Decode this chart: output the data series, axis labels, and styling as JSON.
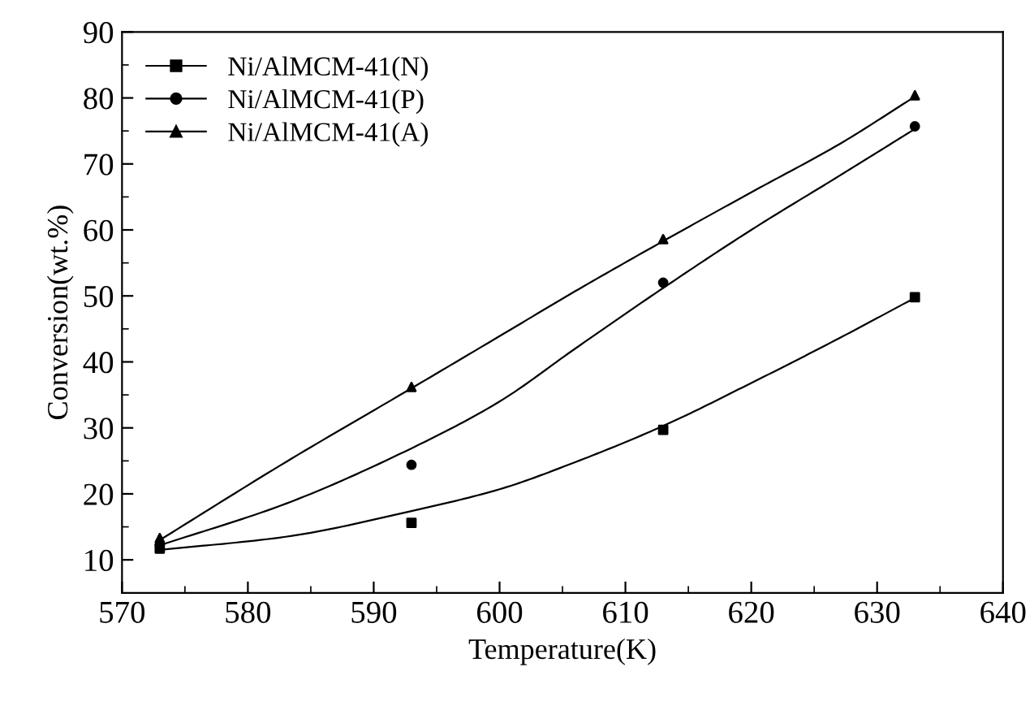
{
  "chart_data": {
    "type": "scatter",
    "xlabel": "Temperature(K)",
    "ylabel": "Conversion(wt.%)",
    "xlim": [
      570,
      640
    ],
    "xticks": [
      570,
      580,
      590,
      600,
      610,
      620,
      630,
      640
    ],
    "ylim": [
      5,
      90
    ],
    "yticks": [
      10,
      20,
      30,
      40,
      50,
      60,
      70,
      80,
      90
    ],
    "grid": false,
    "legend": "top left",
    "series": [
      {
        "name": "Ni/AlMCM-41(N)",
        "marker": "square",
        "color": "#000000",
        "x": [
          573,
          593,
          613,
          633
        ],
        "values": [
          11.7,
          15.6,
          29.7,
          49.8
        ]
      },
      {
        "name": "Ni/AlMCM-41(P)",
        "marker": "circle",
        "color": "#000000",
        "x": [
          573,
          593,
          613,
          633
        ],
        "values": [
          12.3,
          24.4,
          52.0,
          75.7
        ]
      },
      {
        "name": "Ni/AlMCM-41(A)",
        "marker": "triangle",
        "color": "#000000",
        "x": [
          573,
          593,
          613,
          633
        ],
        "values": [
          13.3,
          36.2,
          58.6,
          80.4
        ]
      },
      {
        "type": "line",
        "color": "#000000",
        "x": [
          573,
          583,
          593,
          600,
          606,
          613,
          620,
          627,
          633
        ],
        "values": [
          11.5,
          13.5,
          17.4,
          20.7,
          24.8,
          30.3,
          36.8,
          43.6,
          49.7
        ]
      },
      {
        "type": "line",
        "color": "#000000",
        "x": [
          573,
          583,
          593,
          600,
          606,
          613,
          620,
          627,
          633
        ],
        "values": [
          12.2,
          18.5,
          26.9,
          34.0,
          42.0,
          51.2,
          60.0,
          68.2,
          75.3
        ]
      },
      {
        "type": "line",
        "color": "#000000",
        "x": [
          573,
          583,
          593,
          600,
          606,
          613,
          620,
          627,
          633
        ],
        "values": [
          13.0,
          24.8,
          36.0,
          43.9,
          50.7,
          58.3,
          65.7,
          73.0,
          80.2
        ]
      }
    ]
  }
}
